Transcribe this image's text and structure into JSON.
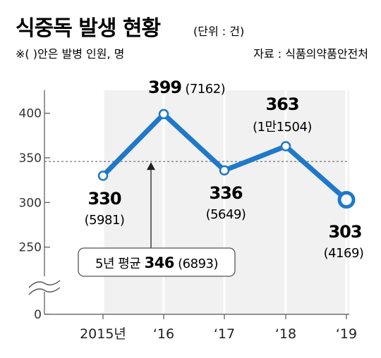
{
  "header": {
    "title": "식중독 발생 현황",
    "unit": "(단위 : 건)",
    "note": "※(  )안은 발병 인원, 명",
    "source": "자료 : 식품의약품안전처"
  },
  "chart_data": {
    "type": "line",
    "title": "식중독 발생 현황",
    "categories": [
      "2015년",
      "‘16",
      "‘17",
      "‘18",
      "‘19"
    ],
    "series": [
      {
        "values": [
          330,
          399,
          336,
          363,
          303
        ]
      }
    ],
    "data_labels": [
      "330",
      "399",
      "336",
      "363",
      "303"
    ],
    "sub_labels": [
      "(5981)",
      "(7162)",
      "(5649)",
      "(1만1504)",
      "(4169)"
    ],
    "y_ticks": [
      "400",
      "350",
      "300",
      "250",
      "0"
    ],
    "ylim": [
      230,
      410
    ],
    "axis_break": true,
    "average": {
      "value": 346,
      "label_prefix": "5년 평균",
      "label_value": "346",
      "label_sub": "(6893)"
    },
    "line_color": "#1f78c8",
    "area_color": "#f1f1f1",
    "grid": false
  }
}
